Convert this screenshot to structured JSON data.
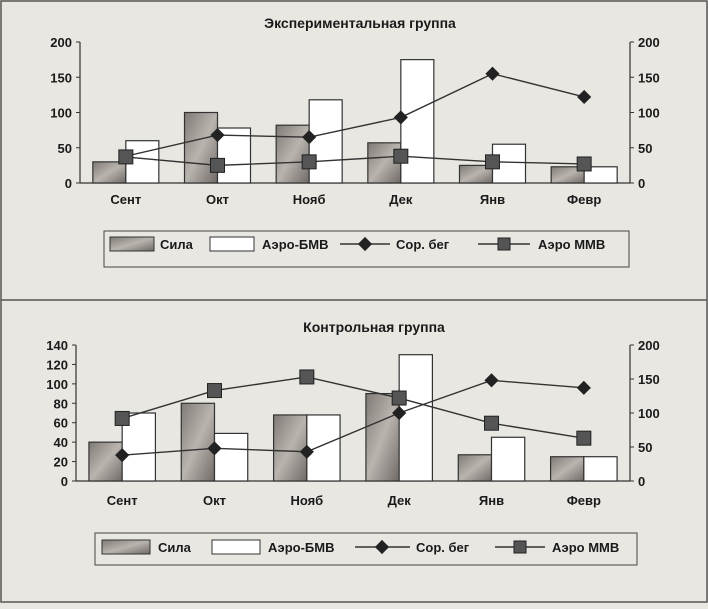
{
  "chart_data": [
    {
      "type": "bar",
      "title": "Экспериментальная группа",
      "categories": [
        "Сент",
        "Окт",
        "Нояб",
        "Дек",
        "Янв",
        "Февр"
      ],
      "ylim_left": [
        0,
        200
      ],
      "yticks_left": [
        0,
        50,
        100,
        150,
        200
      ],
      "ylim_right": [
        0,
        200
      ],
      "yticks_right": [
        0,
        50,
        100,
        150,
        200
      ],
      "series": [
        {
          "name": "Сила",
          "kind": "bar",
          "axis": "left",
          "values": [
            30,
            100,
            82,
            57,
            25,
            23
          ]
        },
        {
          "name": "Аэро-БМВ",
          "kind": "bar",
          "axis": "left",
          "values": [
            60,
            78,
            118,
            175,
            55,
            23
          ]
        },
        {
          "name": "Сор. бег",
          "kind": "line",
          "axis": "right",
          "marker": "diamond",
          "values": [
            38,
            68,
            65,
            93,
            155,
            122
          ]
        },
        {
          "name": "Аэро ММВ",
          "kind": "line",
          "axis": "right",
          "marker": "square",
          "values": [
            37,
            25,
            30,
            38,
            30,
            27
          ]
        }
      ],
      "legend": "bottom",
      "colors": {
        "bar1": "#9a9590",
        "bar2": "#ffffff",
        "line": "#333333"
      }
    },
    {
      "type": "bar",
      "title": "Контрольная группа",
      "categories": [
        "Сент",
        "Окт",
        "Нояб",
        "Дек",
        "Янв",
        "Февр"
      ],
      "ylim_left": [
        0,
        140
      ],
      "yticks_left": [
        0,
        20,
        40,
        60,
        80,
        100,
        120,
        140
      ],
      "ylim_right": [
        0,
        200
      ],
      "yticks_right": [
        0,
        50,
        100,
        150,
        200
      ],
      "series": [
        {
          "name": "Сила",
          "kind": "bar",
          "axis": "left",
          "values": [
            40,
            80,
            68,
            90,
            27,
            25
          ]
        },
        {
          "name": "Аэро-БМВ",
          "kind": "bar",
          "axis": "left",
          "values": [
            70,
            49,
            68,
            130,
            45,
            25
          ]
        },
        {
          "name": "Сор. бег",
          "kind": "line",
          "axis": "right",
          "marker": "diamond",
          "values": [
            38,
            48,
            43,
            100,
            148,
            137
          ]
        },
        {
          "name": "Аэро ММВ",
          "kind": "line",
          "axis": "right",
          "marker": "square",
          "values": [
            92,
            133,
            153,
            122,
            85,
            63
          ]
        }
      ],
      "legend": "bottom",
      "colors": {
        "bar1": "#9a9590",
        "bar2": "#ffffff",
        "line": "#333333"
      }
    }
  ]
}
